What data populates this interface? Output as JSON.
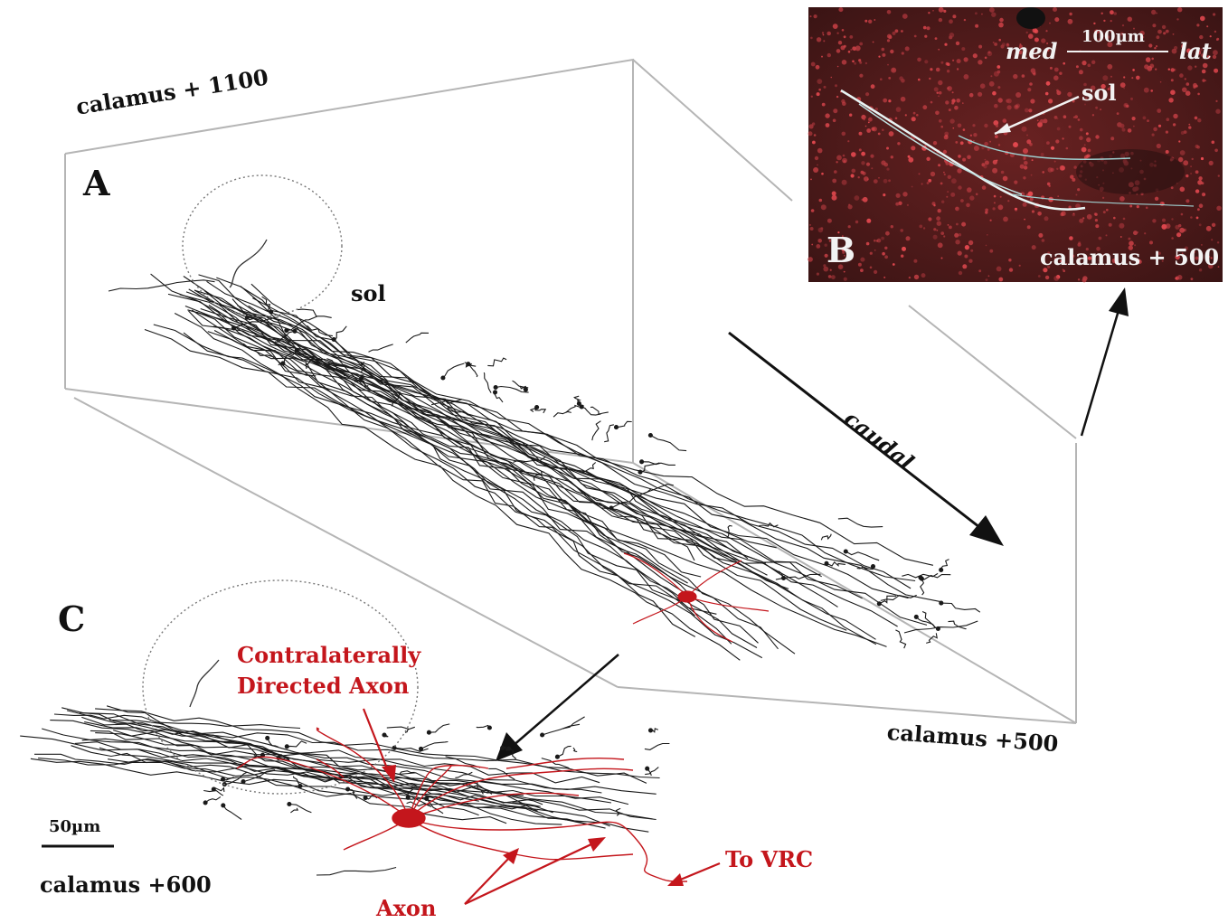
{
  "figure": {
    "panels": {
      "A": {
        "letter": "A",
        "level_label": "calamus + 1100",
        "tract_label": "sol",
        "bottom_label": "calamus +500",
        "direction_label": "caudal"
      },
      "B": {
        "letter": "B",
        "scale_text": "100µm",
        "med_label": "med",
        "lat_label": "lat",
        "tract_label": "sol",
        "level_label": "calamus + 500"
      },
      "C": {
        "letter": "C",
        "scale_text": "50µm",
        "level_label": "calamus +600",
        "contra_line1": "Contralaterally",
        "contra_line2": "Directed Axon",
        "vrc_label": "To VRC",
        "axon_label": "Axon"
      }
    },
    "colors": {
      "neuron_black": "#1a1a1a",
      "neuron_red": "#c4161c",
      "micrograph_bg": "#4a1a1a",
      "frame_gray": "#b5b5b5"
    }
  }
}
